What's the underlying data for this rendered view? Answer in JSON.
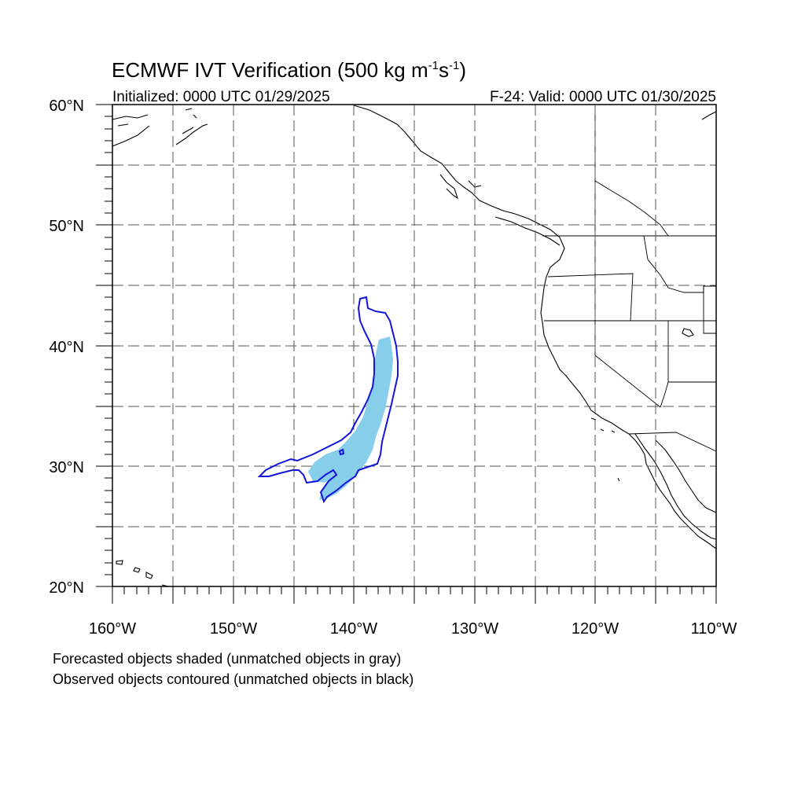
{
  "title": {
    "prefix": "ECMWF IVT Verification (500 kg m",
    "exp1": "-1",
    "mid": "s",
    "exp2": "-1",
    "suffix": ")"
  },
  "subtitle_left": "Initialized: 0000 UTC 01/29/2025",
  "subtitle_right": "F-24: Valid: 0000 UTC 01/30/2025",
  "lat_labels": [
    "20°N",
    "30°N",
    "40°N",
    "50°N",
    "60°N"
  ],
  "lon_labels": [
    "160°W",
    "150°W",
    "140°W",
    "130°W",
    "120°W",
    "110°W"
  ],
  "footnote_1": "Forecasted objects shaded (unmatched objects in gray)",
  "footnote_2": "Observed objects contoured (unmatched objects in black)",
  "map_extent": {
    "lon_min": -160,
    "lon_max": -110,
    "lat_min": 20,
    "lat_max": 60
  },
  "colors": {
    "forecast_fill": "#87ceeb",
    "observed_contour": "#1414dc",
    "grid": "#555555",
    "coast": "#000000"
  }
}
